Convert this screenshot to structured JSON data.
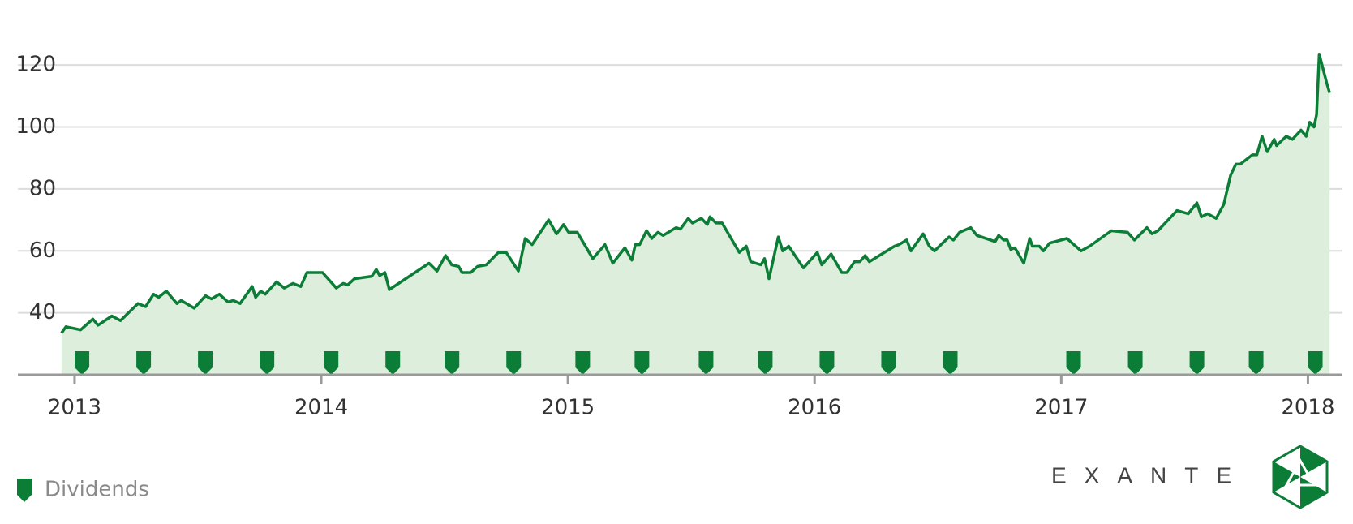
{
  "chart_data": {
    "type": "area",
    "series": [
      {
        "color": "#0b7d37",
        "fill": "#deeedd",
        "x": [
          2012.947,
          2012.965,
          2013.025,
          2013.074,
          2013.095,
          2013.151,
          2013.186,
          2013.257,
          2013.288,
          2013.32,
          2013.341,
          2013.372,
          2013.415,
          2013.432,
          2013.485,
          2013.531,
          2013.555,
          2013.587,
          2013.622,
          2013.643,
          2013.671,
          2013.72,
          2013.734,
          2013.755,
          2013.773,
          2013.819,
          2013.85,
          2013.885,
          2013.917,
          2013.942,
          2014.005,
          2014.061,
          2014.089,
          2014.107,
          2014.135,
          2014.205,
          2014.223,
          2014.237,
          2014.258,
          2014.276,
          2014.437,
          2014.469,
          2014.504,
          2014.529,
          2014.557,
          2014.571,
          2014.606,
          2014.634,
          2014.669,
          2014.718,
          2014.75,
          2014.799,
          2014.827,
          2014.855,
          2014.922,
          2014.954,
          2014.982,
          2015.003,
          2015.038,
          2015.101,
          2015.15,
          2015.182,
          2015.231,
          2015.259,
          2015.273,
          2015.291,
          2015.319,
          2015.34,
          2015.365,
          2015.386,
          2015.439,
          2015.456,
          2015.488,
          2015.505,
          2015.541,
          2015.565,
          2015.576,
          2015.6,
          2015.625,
          2015.695,
          2015.723,
          2015.741,
          2015.783,
          2015.797,
          2015.815,
          2015.853,
          2015.871,
          2015.895,
          2015.955,
          2016.011,
          2016.029,
          2016.067,
          2016.11,
          2016.131,
          2016.162,
          2016.183,
          2016.205,
          2016.222,
          2016.324,
          2016.342,
          2016.373,
          2016.391,
          2016.44,
          2016.465,
          2016.486,
          2016.545,
          2016.563,
          2016.588,
          2016.633,
          2016.658,
          2016.732,
          2016.746,
          2016.767,
          2016.781,
          2016.795,
          2016.812,
          2016.848,
          2016.872,
          2016.883,
          2016.911,
          2016.928,
          2016.953,
          2017.023,
          2017.08,
          2017.115,
          2017.203,
          2017.269,
          2017.297,
          2017.347,
          2017.368,
          2017.392,
          2017.469,
          2017.515,
          2017.55,
          2017.568,
          2017.593,
          2017.628,
          2017.659,
          2017.687,
          2017.708,
          2017.726,
          2017.775,
          2017.793,
          2017.814,
          2017.835,
          2017.863,
          2017.873,
          2017.912,
          2017.937,
          2017.972,
          2017.993,
          2018.007,
          2018.025,
          2018.035,
          2018.046,
          2018.077,
          2018.088
        ],
        "values": [
          33.5,
          35.5,
          34.5,
          38,
          36,
          39,
          37.5,
          43,
          42,
          46,
          45,
          47,
          43,
          44,
          41.5,
          45.5,
          44.5,
          46,
          43.5,
          44,
          43,
          48.5,
          45,
          47,
          46,
          50,
          48,
          49.5,
          48.5,
          53,
          53,
          48,
          49.5,
          49,
          51,
          51.8,
          54,
          52,
          53,
          47.5,
          56,
          53.5,
          58.5,
          55.5,
          55,
          53,
          53,
          55,
          55.5,
          59.5,
          59.5,
          53.5,
          64,
          62,
          70,
          65.5,
          68.5,
          66,
          66,
          57.5,
          62,
          56,
          61,
          57,
          62,
          62,
          66.5,
          64,
          66,
          65,
          67.5,
          67,
          70.5,
          69,
          70.5,
          68.5,
          71,
          69,
          69,
          59.5,
          61.5,
          56.5,
          55.5,
          57.5,
          51,
          64.5,
          60,
          61.5,
          54.5,
          59.5,
          55.5,
          59,
          53,
          53,
          56.5,
          56.5,
          58.5,
          56.5,
          61.5,
          62,
          63.5,
          60,
          65.5,
          61.5,
          60,
          64.5,
          63.5,
          66,
          67.5,
          65,
          63,
          65,
          63.5,
          63.5,
          60.5,
          61,
          56,
          64,
          61.5,
          61.5,
          60,
          62.5,
          64,
          60,
          61.5,
          66.5,
          66,
          63.5,
          67.5,
          65.5,
          66.5,
          73,
          72,
          75.5,
          71,
          72,
          70.5,
          75,
          84.5,
          88,
          88,
          91,
          91,
          97,
          92,
          96,
          94,
          97,
          96,
          99,
          97,
          101.5,
          100,
          104,
          123.5,
          114,
          111
        ]
      }
    ],
    "dividends": {
      "name": "Dividends",
      "color": "#0b7d37",
      "x": [
        2013.03,
        2013.28,
        2013.53,
        2013.78,
        2014.04,
        2014.29,
        2014.53,
        2014.78,
        2015.06,
        2015.3,
        2015.56,
        2015.8,
        2016.05,
        2016.3,
        2016.55,
        2017.05,
        2017.3,
        2017.55,
        2017.79,
        2018.03
      ]
    },
    "xlim": [
      2012.77,
      2018.14
    ],
    "xticks": [
      2013,
      2014,
      2015,
      2016,
      2017,
      2018
    ],
    "ylim": [
      20,
      130
    ],
    "yticks": [
      40,
      60,
      80,
      100,
      120
    ],
    "grid": true
  },
  "logo": {
    "text": "EXANTE"
  }
}
